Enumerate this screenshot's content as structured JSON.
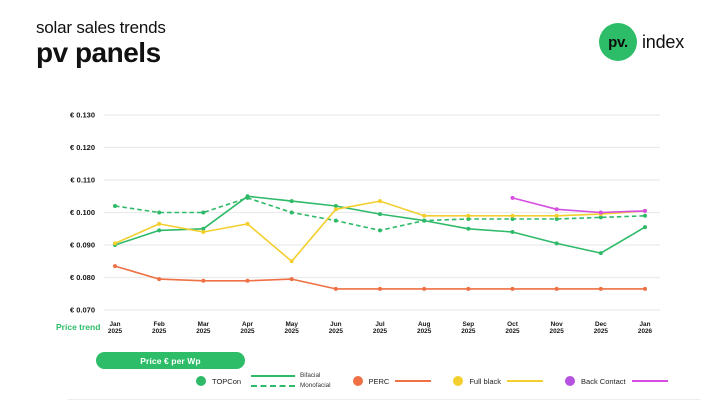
{
  "header": {
    "subtitle": "solar sales trends",
    "title": "pv panels",
    "logo_mark": "pv.",
    "logo_name": "index"
  },
  "colors": {
    "brand_green": "#2dbd68",
    "grid": "#ebebeb"
  },
  "axis": {
    "price_trend_label": "Price trend",
    "unit_button_label": "Price € per Wp"
  },
  "legend": {
    "items": [
      {
        "label": "TOPCon",
        "variants": [
          {
            "label": "Bifacial"
          },
          {
            "label": "Monofacial"
          }
        ]
      },
      {
        "label": "PERC"
      },
      {
        "label": "Full black"
      },
      {
        "label": "Back Contact"
      }
    ]
  },
  "chart_data": {
    "type": "line",
    "title": "pv panels price trend",
    "xlabel": "",
    "ylabel": "Price € per Wp",
    "x": [
      "Jan 2025",
      "Feb 2025",
      "Mar 2025",
      "Apr 2025",
      "May 2025",
      "Jun 2025",
      "Jul 2025",
      "Aug 2025",
      "Sep 2025",
      "Oct 2025",
      "Nov 2025",
      "Dec 2025",
      "Jan 2026"
    ],
    "ylim": [
      0.07,
      0.13
    ],
    "ytick_step": 0.01,
    "ytick_prefix": "€ ",
    "grid": "horizontal",
    "legend_position": "bottom",
    "series": [
      {
        "name": "TOPCon Bifacial",
        "color": "#2eba68",
        "dot": "#2eba68",
        "dash": false,
        "values": [
          0.09,
          0.0945,
          0.095,
          0.105,
          0.1035,
          0.102,
          0.0995,
          0.0975,
          0.095,
          0.094,
          0.0905,
          0.0875,
          0.0955
        ]
      },
      {
        "name": "TOPCon Monofacial",
        "color": "#2eba68",
        "dot": "#2eba68",
        "dash": true,
        "values": [
          0.102,
          0.1,
          0.1,
          0.1045,
          0.1,
          0.0975,
          0.0945,
          0.0975,
          0.098,
          0.098,
          0.098,
          0.0985,
          0.099
        ]
      },
      {
        "name": "PERC",
        "color": "#ee7044",
        "dot": "#ee7044",
        "dash": false,
        "values": [
          0.0835,
          0.0795,
          0.079,
          0.079,
          0.0795,
          0.0765,
          0.0765,
          0.0765,
          0.0765,
          0.0765,
          0.0765,
          0.0765,
          0.0765
        ]
      },
      {
        "name": "Full black",
        "color": "#f3cf2d",
        "dot": "#f3cf2d",
        "dash": false,
        "values": [
          0.0905,
          0.0965,
          0.094,
          0.0965,
          0.085,
          0.101,
          0.1035,
          0.099,
          0.099,
          0.099,
          0.099,
          0.0995,
          0.1005
        ]
      },
      {
        "name": "Back Contact",
        "color": "#d64ee0",
        "dot": "#b652e0",
        "dash": false,
        "values": [
          null,
          null,
          null,
          null,
          null,
          null,
          null,
          null,
          null,
          0.1045,
          0.101,
          0.1,
          0.1005
        ]
      }
    ]
  }
}
